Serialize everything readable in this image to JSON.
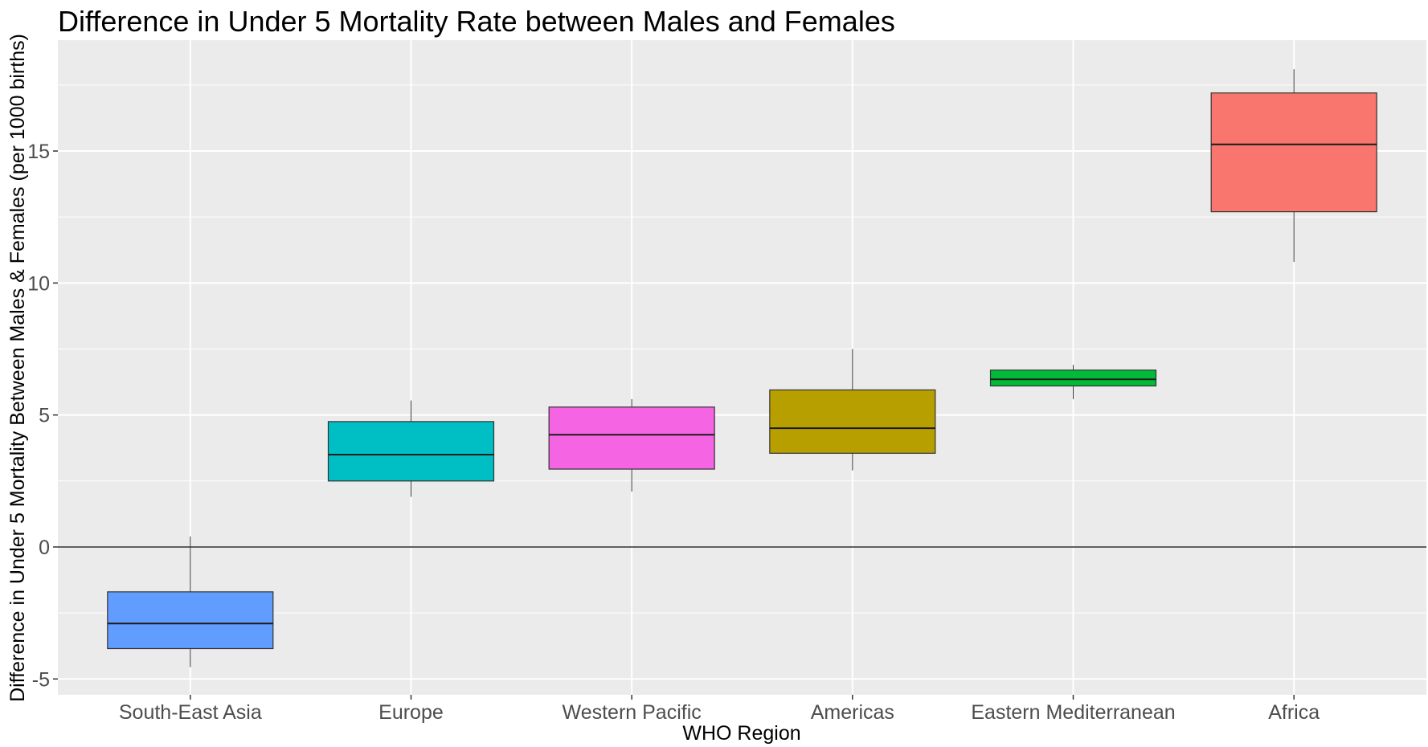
{
  "chart_data": {
    "type": "boxplot",
    "title": "Difference in Under 5 Mortality Rate between Males and Females",
    "xlabel": "WHO Region",
    "ylabel": "Difference in Under 5 Mortality Between Males & Females (per 1000 births)",
    "ylim": [
      -5.6,
      19.2
    ],
    "yticks": [
      -5,
      0,
      5,
      10,
      15
    ],
    "ytick_labels": [
      "-5",
      "0",
      "5",
      "10",
      "15"
    ],
    "reference_line": 0,
    "grid": true,
    "legend": "none",
    "categories": [
      "South-East Asia",
      "Europe",
      "Western Pacific",
      "Americas",
      "Eastern Mediterranean",
      "Africa"
    ],
    "boxes": [
      {
        "category": "South-East Asia",
        "min": -4.55,
        "q1": -3.85,
        "median": -2.9,
        "q3": -1.7,
        "max": 0.4,
        "color": "#619CFF"
      },
      {
        "category": "Europe",
        "min": 1.9,
        "q1": 2.5,
        "median": 3.5,
        "q3": 4.75,
        "max": 5.55,
        "color": "#00BFC4"
      },
      {
        "category": "Western Pacific",
        "min": 2.1,
        "q1": 2.95,
        "median": 4.25,
        "q3": 5.3,
        "max": 5.6,
        "color": "#F564E3"
      },
      {
        "category": "Americas",
        "min": 2.9,
        "q1": 3.55,
        "median": 4.5,
        "q3": 5.95,
        "max": 7.5,
        "color": "#B79F00"
      },
      {
        "category": "Eastern Mediterranean",
        "min": 5.6,
        "q1": 6.1,
        "median": 6.35,
        "q3": 6.7,
        "max": 6.9,
        "color": "#00BA38"
      },
      {
        "category": "Africa",
        "min": 10.8,
        "q1": 12.7,
        "median": 15.25,
        "q3": 17.2,
        "max": 18.1,
        "color": "#F8766D"
      }
    ]
  }
}
